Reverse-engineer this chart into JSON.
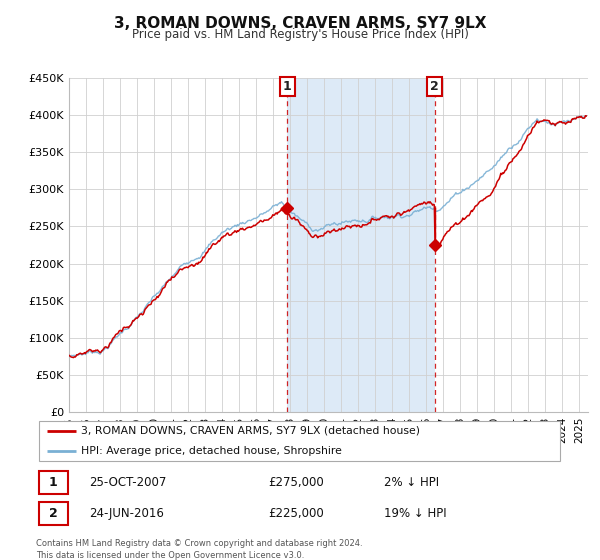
{
  "title": "3, ROMAN DOWNS, CRAVEN ARMS, SY7 9LX",
  "subtitle": "Price paid vs. HM Land Registry's House Price Index (HPI)",
  "hpi_color": "#7ab0d4",
  "price_color": "#cc0000",
  "plot_bg": "#ffffff",
  "fig_bg": "#ffffff",
  "shade_color": "#ddeaf7",
  "ylim": [
    0,
    450000
  ],
  "yticks": [
    0,
    50000,
    100000,
    150000,
    200000,
    250000,
    300000,
    350000,
    400000,
    450000
  ],
  "ytick_labels": [
    "£0",
    "£50K",
    "£100K",
    "£150K",
    "£200K",
    "£250K",
    "£300K",
    "£350K",
    "£400K",
    "£450K"
  ],
  "xlim_start": 1995.0,
  "xlim_end": 2025.5,
  "marker1_x": 2007.82,
  "marker1_y": 275000,
  "marker2_x": 2016.48,
  "marker2_y": 225000,
  "marker1_label": "1",
  "marker2_label": "2",
  "table_row1": [
    "1",
    "25-OCT-2007",
    "£275,000",
    "2% ↓ HPI"
  ],
  "table_row2": [
    "2",
    "24-JUN-2016",
    "£225,000",
    "19% ↓ HPI"
  ],
  "legend_line1": "3, ROMAN DOWNS, CRAVEN ARMS, SY7 9LX (detached house)",
  "legend_line2": "HPI: Average price, detached house, Shropshire",
  "footer": "Contains HM Land Registry data © Crown copyright and database right 2024.\nThis data is licensed under the Open Government Licence v3.0.",
  "shade_start": 2007.82,
  "shade_end": 2016.48
}
